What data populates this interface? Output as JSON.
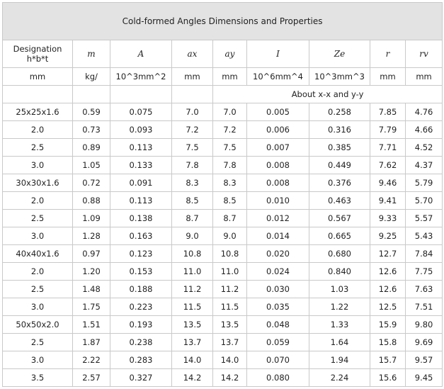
{
  "title": "Cold-formed Angles Dimensions and Properties",
  "header": {
    "designation": [
      "Designation",
      "h*b*t"
    ],
    "symbols": [
      "m",
      "A",
      "ax",
      "ay",
      "I",
      "Ze",
      "r",
      "rv"
    ]
  },
  "units": [
    "mm",
    "kg/",
    "10^3mm^2",
    "mm",
    "mm",
    "10^6mm^4",
    "10^3mm^3",
    "mm",
    "mm"
  ],
  "about_label": "About x-x and y-y",
  "rows": [
    [
      "25x25x1.6",
      "0.59",
      "0.075",
      "7.0",
      "7.0",
      "0.005",
      "0.258",
      "7.85",
      "4.76"
    ],
    [
      "2.0",
      "0.73",
      "0.093",
      "7.2",
      "7.2",
      "0.006",
      "0.316",
      "7.79",
      "4.66"
    ],
    [
      "2.5",
      "0.89",
      "0.113",
      "7.5",
      "7.5",
      "0.007",
      "0.385",
      "7.71",
      "4.52"
    ],
    [
      "3.0",
      "1.05",
      "0.133",
      "7.8",
      "7.8",
      "0.008",
      "0.449",
      "7.62",
      "4.37"
    ],
    [
      "30x30x1.6",
      "0.72",
      "0.091",
      "8.3",
      "8.3",
      "0.008",
      "0.376",
      "9.46",
      "5.79"
    ],
    [
      "2.0",
      "0.88",
      "0.113",
      "8.5",
      "8.5",
      "0.010",
      "0.463",
      "9.41",
      "5.70"
    ],
    [
      "2.5",
      "1.09",
      "0.138",
      "8.7",
      "8.7",
      "0.012",
      "0.567",
      "9.33",
      "5.57"
    ],
    [
      "3.0",
      "1.28",
      "0.163",
      "9.0",
      "9.0",
      "0.014",
      "0.665",
      "9.25",
      "5.43"
    ],
    [
      "40x40x1.6",
      "0.97",
      "0.123",
      "10.8",
      "10.8",
      "0.020",
      "0.680",
      "12.7",
      "7.84"
    ],
    [
      "2.0",
      "1.20",
      "0.153",
      "11.0",
      "11.0",
      "0.024",
      "0.840",
      "12.6",
      "7.75"
    ],
    [
      "2.5",
      "1.48",
      "0.188",
      "11.2",
      "11.2",
      "0.030",
      "1.03",
      "12.6",
      "7.63"
    ],
    [
      "3.0",
      "1.75",
      "0.223",
      "11.5",
      "11.5",
      "0.035",
      "1.22",
      "12.5",
      "7.51"
    ],
    [
      "50x50x2.0",
      "1.51",
      "0.193",
      "13.5",
      "13.5",
      "0.048",
      "1.33",
      "15.9",
      "9.80"
    ],
    [
      "2.5",
      "1.87",
      "0.238",
      "13.7",
      "13.7",
      "0.059",
      "1.64",
      "15.8",
      "9.69"
    ],
    [
      "3.0",
      "2.22",
      "0.283",
      "14.0",
      "14.0",
      "0.070",
      "1.94",
      "15.7",
      "9.57"
    ],
    [
      "3.5",
      "2.57",
      "0.327",
      "14.2",
      "14.2",
      "0.080",
      "2.24",
      "15.6",
      "9.45"
    ]
  ]
}
